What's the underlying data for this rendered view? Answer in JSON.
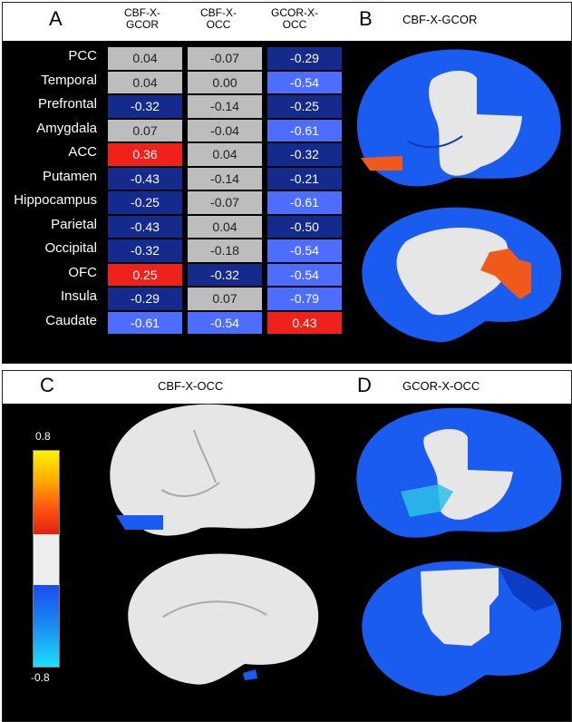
{
  "panels": {
    "a_letter": "A",
    "b_letter": "B",
    "c_letter": "C",
    "d_letter": "D"
  },
  "table": {
    "columns": [
      "CBF-X-\nGCOR",
      "CBF-X-\nOCC",
      "GCOR-X-\nOCC"
    ],
    "rows": [
      {
        "label": "PCC",
        "values": [
          "0.04",
          "-0.07",
          "-0.29"
        ],
        "colors": [
          "gray",
          "gray",
          "navy"
        ]
      },
      {
        "label": "Temporal",
        "values": [
          "0.04",
          "0.00",
          "-0.54"
        ],
        "colors": [
          "gray",
          "gray",
          "blue"
        ]
      },
      {
        "label": "Prefrontal",
        "values": [
          "-0.32",
          "-0.14",
          "-0.25"
        ],
        "colors": [
          "navy",
          "gray",
          "navy"
        ]
      },
      {
        "label": "Amygdala",
        "values": [
          "0.07",
          "-0.04",
          "-0.61"
        ],
        "colors": [
          "gray",
          "gray",
          "blue"
        ]
      },
      {
        "label": "ACC",
        "values": [
          "0.36",
          "0.04",
          "-0.32"
        ],
        "colors": [
          "red",
          "gray",
          "navy"
        ]
      },
      {
        "label": "Putamen",
        "values": [
          "-0.43",
          "-0.14",
          "-0.21"
        ],
        "colors": [
          "navy",
          "gray",
          "navy"
        ]
      },
      {
        "label": "Hippocampus",
        "values": [
          "-0.25",
          "-0.07",
          "-0.61"
        ],
        "colors": [
          "navy",
          "gray",
          "blue"
        ]
      },
      {
        "label": "Parietal",
        "values": [
          "-0.43",
          "0.04",
          "-0.50"
        ],
        "colors": [
          "navy",
          "gray",
          "navy"
        ]
      },
      {
        "label": "Occipital",
        "values": [
          "-0.32",
          "-0.18",
          "-0.54"
        ],
        "colors": [
          "navy",
          "gray",
          "blue"
        ]
      },
      {
        "label": "OFC",
        "values": [
          "0.25",
          "-0.32",
          "-0.54"
        ],
        "colors": [
          "red",
          "navy",
          "blue"
        ]
      },
      {
        "label": "Insula",
        "values": [
          "-0.29",
          "0.07",
          "-0.79"
        ],
        "colors": [
          "navy",
          "gray",
          "blue"
        ]
      },
      {
        "label": "Caudate",
        "values": [
          "-0.61",
          "-0.54",
          "0.43"
        ],
        "colors": [
          "blue",
          "blue",
          "red"
        ]
      }
    ]
  },
  "titles": {
    "b": "CBF-X-GCOR",
    "c": "CBF-X-OCC",
    "d": "GCOR-X-OCC"
  },
  "colorbar": {
    "max_label": "0.8",
    "min_label": "-0.8"
  },
  "colors": {
    "gray": "#bdbdbd",
    "navy": "#142a8c",
    "blue": "#4d6dff",
    "red": "#f0201a",
    "brain_gray": "#e6e6e6",
    "brain_blue": "#1a5cf0",
    "brain_orange": "#ef5a1a"
  }
}
